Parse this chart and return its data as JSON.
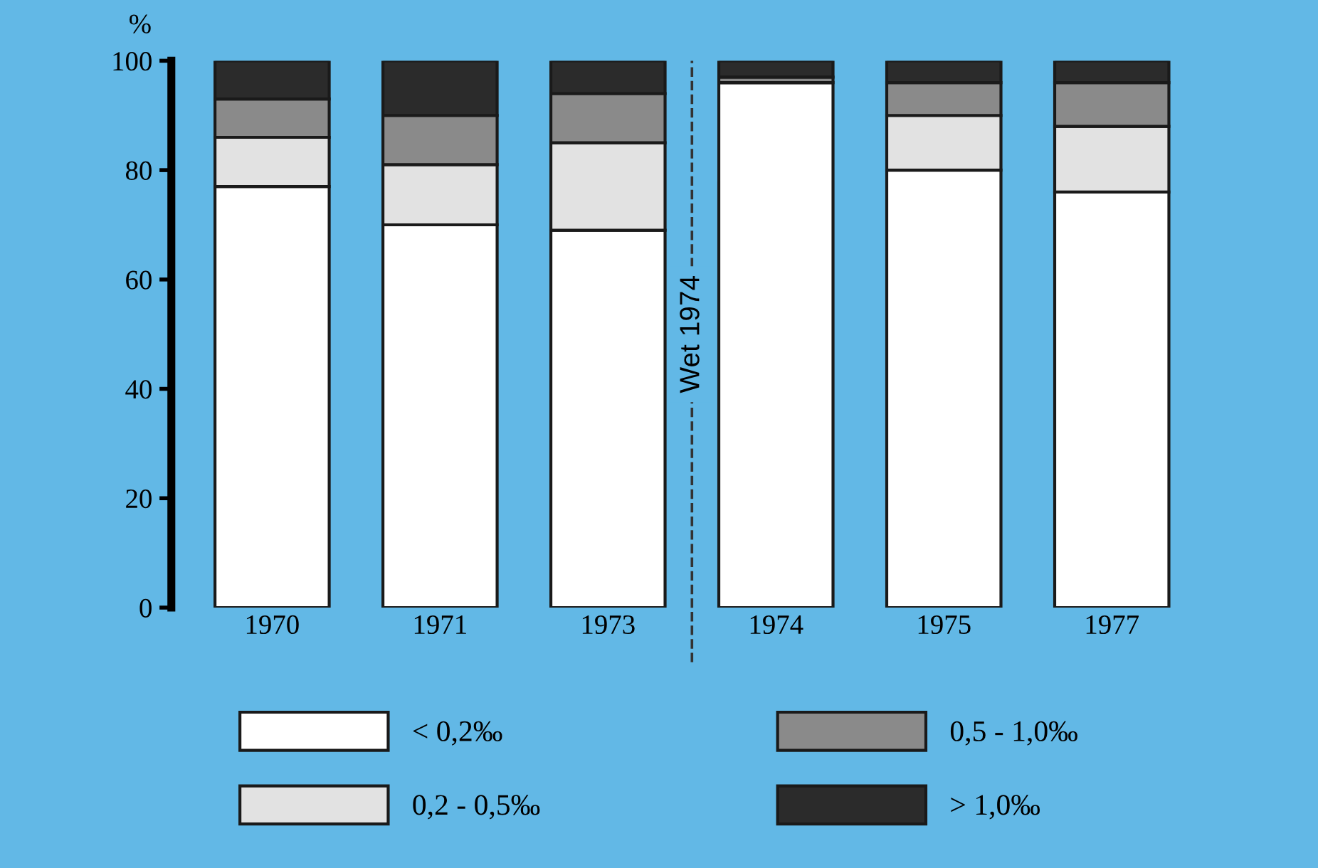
{
  "chart_data": {
    "type": "bar",
    "stacked": true,
    "ylabel": "%",
    "categories": [
      "1970",
      "1971",
      "1973",
      "1974",
      "1975",
      "1977"
    ],
    "series": [
      {
        "name": "< 0,2‰",
        "color": "#ffffff",
        "values": [
          77,
          70,
          69,
          96,
          80,
          76
        ]
      },
      {
        "name": "0,2 - 0,5‰",
        "color": "#e2e2e2",
        "values": [
          9,
          11,
          16,
          0,
          10,
          12
        ]
      },
      {
        "name": "0,5 - 1,0‰",
        "color": "#8a8a8a",
        "values": [
          7,
          9,
          9,
          1,
          6,
          8
        ]
      },
      {
        "name": "> 1,0‰",
        "color": "#2b2b2b",
        "values": [
          7,
          10,
          6,
          3,
          4,
          4
        ]
      }
    ],
    "ylim": [
      0,
      100
    ],
    "yticks": [
      0,
      20,
      40,
      60,
      80,
      100
    ],
    "annotations": [
      "Wet 1974"
    ],
    "grid": false,
    "legend": "bottom"
  }
}
